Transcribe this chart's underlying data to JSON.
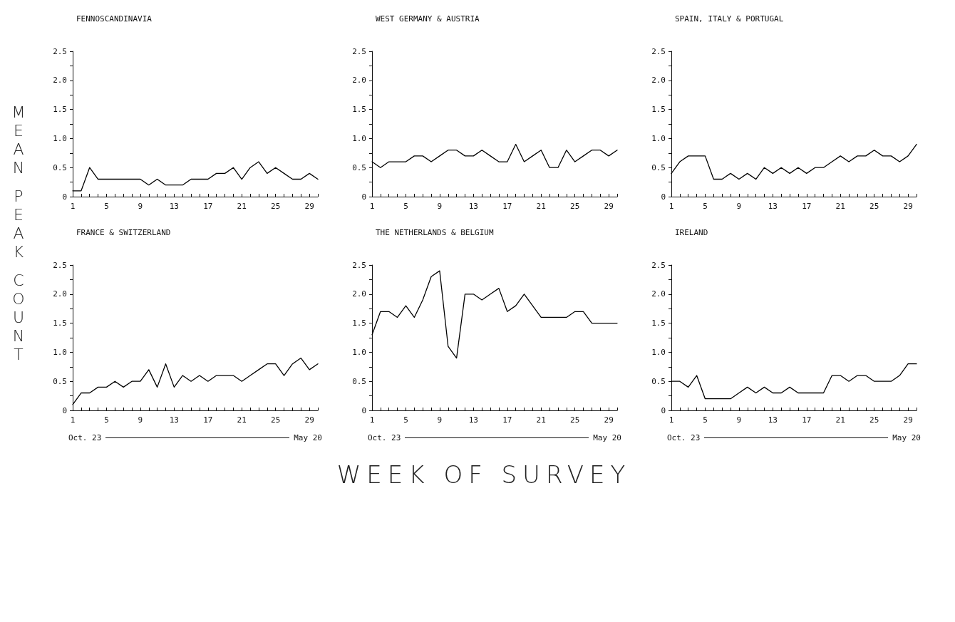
{
  "chart_data": [
    {
      "type": "line",
      "title": "FENNOSCANDINAVIA",
      "ylabel": "MEAN PEAK COUNT",
      "color": "#000000",
      "x": [
        1,
        2,
        3,
        4,
        5,
        6,
        7,
        8,
        9,
        10,
        11,
        12,
        13,
        14,
        15,
        16,
        17,
        18,
        19,
        20,
        21,
        22,
        23,
        24,
        25,
        26,
        27,
        28,
        29,
        30
      ],
      "values": [
        0.1,
        0.1,
        0.5,
        0.3,
        0.3,
        0.3,
        0.3,
        0.3,
        0.3,
        0.2,
        0.3,
        0.2,
        0.2,
        0.2,
        0.3,
        0.3,
        0.3,
        0.4,
        0.4,
        0.5,
        0.3,
        0.5,
        0.6,
        0.4,
        0.5,
        0.4,
        0.3,
        0.3,
        0.4,
        0.3
      ],
      "xlim": [
        1,
        30
      ],
      "xticks": [
        1,
        {
          "value": 2,
          "label": null
        },
        {
          "value": 3,
          "label": null
        },
        {
          "value": 4,
          "label": null
        },
        5,
        {
          "value": 6,
          "label": null
        },
        {
          "value": 7,
          "label": null
        },
        {
          "value": 8,
          "label": null
        },
        9,
        {
          "value": 10,
          "label": null
        },
        {
          "value": 11,
          "label": null
        },
        {
          "value": 12,
          "label": null
        },
        13,
        {
          "value": 14,
          "label": null
        },
        {
          "value": 15,
          "label": null
        },
        {
          "value": 16,
          "label": null
        },
        17,
        {
          "value": 18,
          "label": null
        },
        {
          "value": 19,
          "label": null
        },
        {
          "value": 20,
          "label": null
        },
        21,
        {
          "value": 22,
          "label": null
        },
        {
          "value": 23,
          "label": null
        },
        {
          "value": 24,
          "label": null
        },
        25,
        {
          "value": 26,
          "label": null
        },
        {
          "value": 27,
          "label": null
        },
        {
          "value": 28,
          "label": null
        },
        29,
        {
          "value": 30,
          "label": null
        }
      ],
      "ylim": [
        0,
        2.5
      ],
      "yticks": [
        0,
        {
          "value": 0.25,
          "label": null
        },
        0.5,
        {
          "value": 0.75,
          "label": null
        },
        {
          "value": 1,
          "label": "1.0"
        },
        {
          "value": 1.25,
          "label": null
        },
        1.5,
        {
          "value": 1.75,
          "label": null
        },
        {
          "value": 2,
          "label": "2.0"
        },
        {
          "value": 2.25,
          "label": null
        },
        2.5
      ]
    },
    {
      "type": "line",
      "title": "WEST GERMANY & AUSTRIA",
      "color": "#000000",
      "x": [
        1,
        2,
        3,
        4,
        5,
        6,
        7,
        8,
        9,
        10,
        11,
        12,
        13,
        14,
        15,
        16,
        17,
        18,
        19,
        20,
        21,
        22,
        23,
        24,
        25,
        26,
        27,
        28,
        29,
        30
      ],
      "values": [
        0.6,
        0.5,
        0.6,
        0.6,
        0.6,
        0.7,
        0.7,
        0.6,
        0.7,
        0.8,
        0.8,
        0.7,
        0.7,
        0.8,
        0.7,
        0.6,
        0.6,
        0.9,
        0.6,
        0.7,
        0.8,
        0.5,
        0.5,
        0.8,
        0.6,
        0.7,
        0.8,
        0.8,
        0.7,
        0.8
      ],
      "xlim": [
        1,
        30
      ],
      "xticks": [
        1,
        {
          "value": 2,
          "label": null
        },
        {
          "value": 3,
          "label": null
        },
        {
          "value": 4,
          "label": null
        },
        5,
        {
          "value": 6,
          "label": null
        },
        {
          "value": 7,
          "label": null
        },
        {
          "value": 8,
          "label": null
        },
        9,
        {
          "value": 10,
          "label": null
        },
        {
          "value": 11,
          "label": null
        },
        {
          "value": 12,
          "label": null
        },
        13,
        {
          "value": 14,
          "label": null
        },
        {
          "value": 15,
          "label": null
        },
        {
          "value": 16,
          "label": null
        },
        17,
        {
          "value": 18,
          "label": null
        },
        {
          "value": 19,
          "label": null
        },
        {
          "value": 20,
          "label": null
        },
        21,
        {
          "value": 22,
          "label": null
        },
        {
          "value": 23,
          "label": null
        },
        {
          "value": 24,
          "label": null
        },
        25,
        {
          "value": 26,
          "label": null
        },
        {
          "value": 27,
          "label": null
        },
        {
          "value": 28,
          "label": null
        },
        29,
        {
          "value": 30,
          "label": null
        }
      ],
      "ylim": [
        0,
        2.5
      ],
      "yticks": [
        0,
        {
          "value": 0.25,
          "label": null
        },
        0.5,
        {
          "value": 0.75,
          "label": null
        },
        {
          "value": 1,
          "label": "1.0"
        },
        {
          "value": 1.25,
          "label": null
        },
        1.5,
        {
          "value": 1.75,
          "label": null
        },
        {
          "value": 2,
          "label": "2.0"
        },
        {
          "value": 2.25,
          "label": null
        },
        2.5
      ]
    },
    {
      "type": "line",
      "title": "SPAIN, ITALY & PORTUGAL",
      "color": "#000000",
      "x": [
        1,
        2,
        3,
        4,
        5,
        6,
        7,
        8,
        9,
        10,
        11,
        12,
        13,
        14,
        15,
        16,
        17,
        18,
        19,
        20,
        21,
        22,
        23,
        24,
        25,
        26,
        27,
        28,
        29,
        30
      ],
      "values": [
        0.4,
        0.6,
        0.7,
        0.7,
        0.7,
        0.3,
        0.3,
        0.4,
        0.3,
        0.4,
        0.3,
        0.5,
        0.4,
        0.5,
        0.4,
        0.5,
        0.4,
        0.5,
        0.5,
        0.6,
        0.7,
        0.6,
        0.7,
        0.7,
        0.8,
        0.7,
        0.7,
        0.6,
        0.7,
        0.9
      ],
      "xlim": [
        1,
        30
      ],
      "xticks": [
        1,
        {
          "value": 2,
          "label": null
        },
        {
          "value": 3,
          "label": null
        },
        {
          "value": 4,
          "label": null
        },
        5,
        {
          "value": 6,
          "label": null
        },
        {
          "value": 7,
          "label": null
        },
        {
          "value": 8,
          "label": null
        },
        9,
        {
          "value": 10,
          "label": null
        },
        {
          "value": 11,
          "label": null
        },
        {
          "value": 12,
          "label": null
        },
        13,
        {
          "value": 14,
          "label": null
        },
        {
          "value": 15,
          "label": null
        },
        {
          "value": 16,
          "label": null
        },
        17,
        {
          "value": 18,
          "label": null
        },
        {
          "value": 19,
          "label": null
        },
        {
          "value": 20,
          "label": null
        },
        21,
        {
          "value": 22,
          "label": null
        },
        {
          "value": 23,
          "label": null
        },
        {
          "value": 24,
          "label": null
        },
        25,
        {
          "value": 26,
          "label": null
        },
        {
          "value": 27,
          "label": null
        },
        {
          "value": 28,
          "label": null
        },
        29,
        {
          "value": 30,
          "label": null
        }
      ],
      "ylim": [
        0,
        2.5
      ],
      "yticks": [
        0,
        {
          "value": 0.25,
          "label": null
        },
        0.5,
        {
          "value": 0.75,
          "label": null
        },
        {
          "value": 1,
          "label": "1.0"
        },
        {
          "value": 1.25,
          "label": null
        },
        1.5,
        {
          "value": 1.75,
          "label": null
        },
        {
          "value": 2,
          "label": "2.0"
        },
        {
          "value": 2.25,
          "label": null
        },
        2.5
      ]
    },
    {
      "type": "line",
      "title": "FRANCE & SWITZERLAND",
      "annotations": [
        "Oct. 23",
        "May 20"
      ],
      "color": "#000000",
      "x": [
        1,
        2,
        3,
        4,
        5,
        6,
        7,
        8,
        9,
        10,
        11,
        12,
        13,
        14,
        15,
        16,
        17,
        18,
        19,
        20,
        21,
        22,
        23,
        24,
        25,
        26,
        27,
        28,
        29,
        30
      ],
      "values": [
        0.1,
        0.3,
        0.3,
        0.4,
        0.4,
        0.5,
        0.4,
        0.5,
        0.5,
        0.7,
        0.4,
        0.8,
        0.4,
        0.6,
        0.5,
        0.6,
        0.5,
        0.6,
        0.6,
        0.6,
        0.5,
        0.6,
        0.7,
        0.8,
        0.8,
        0.6,
        0.8,
        0.9,
        0.7,
        0.8
      ],
      "xlim": [
        1,
        30
      ],
      "xticks": [
        1,
        {
          "value": 2,
          "label": null
        },
        {
          "value": 3,
          "label": null
        },
        {
          "value": 4,
          "label": null
        },
        5,
        {
          "value": 6,
          "label": null
        },
        {
          "value": 7,
          "label": null
        },
        {
          "value": 8,
          "label": null
        },
        9,
        {
          "value": 10,
          "label": null
        },
        {
          "value": 11,
          "label": null
        },
        {
          "value": 12,
          "label": null
        },
        13,
        {
          "value": 14,
          "label": null
        },
        {
          "value": 15,
          "label": null
        },
        {
          "value": 16,
          "label": null
        },
        17,
        {
          "value": 18,
          "label": null
        },
        {
          "value": 19,
          "label": null
        },
        {
          "value": 20,
          "label": null
        },
        21,
        {
          "value": 22,
          "label": null
        },
        {
          "value": 23,
          "label": null
        },
        {
          "value": 24,
          "label": null
        },
        25,
        {
          "value": 26,
          "label": null
        },
        {
          "value": 27,
          "label": null
        },
        {
          "value": 28,
          "label": null
        },
        29,
        {
          "value": 30,
          "label": null
        }
      ],
      "ylim": [
        0,
        2.5
      ],
      "yticks": [
        0,
        {
          "value": 0.25,
          "label": null
        },
        0.5,
        {
          "value": 0.75,
          "label": null
        },
        {
          "value": 1,
          "label": "1.0"
        },
        {
          "value": 1.25,
          "label": null
        },
        1.5,
        {
          "value": 1.75,
          "label": null
        },
        {
          "value": 2,
          "label": "2.0"
        },
        {
          "value": 2.25,
          "label": null
        },
        2.5
      ]
    },
    {
      "type": "line",
      "title": "THE NETHERLANDS & BELGIUM",
      "xlabel": "WEEK OF SURVEY",
      "annotations": [
        "Oct. 23",
        "May 20"
      ],
      "color": "#000000",
      "x": [
        1,
        2,
        3,
        4,
        5,
        6,
        7,
        8,
        9,
        10,
        11,
        12,
        13,
        14,
        15,
        16,
        17,
        18,
        19,
        20,
        21,
        22,
        23,
        24,
        25,
        26,
        27,
        28,
        29,
        30
      ],
      "values": [
        1.3,
        1.7,
        1.7,
        1.6,
        1.8,
        1.6,
        1.9,
        2.3,
        2.4,
        1.1,
        0.9,
        2.0,
        2.0,
        1.9,
        2.0,
        2.1,
        1.7,
        1.8,
        2.0,
        1.8,
        1.6,
        1.6,
        1.6,
        1.6,
        1.7,
        1.7,
        1.5,
        1.5,
        1.5,
        1.5
      ],
      "xlim": [
        1,
        30
      ],
      "xticks": [
        1,
        {
          "value": 2,
          "label": null
        },
        {
          "value": 3,
          "label": null
        },
        {
          "value": 4,
          "label": null
        },
        5,
        {
          "value": 6,
          "label": null
        },
        {
          "value": 7,
          "label": null
        },
        {
          "value": 8,
          "label": null
        },
        9,
        {
          "value": 10,
          "label": null
        },
        {
          "value": 11,
          "label": null
        },
        {
          "value": 12,
          "label": null
        },
        13,
        {
          "value": 14,
          "label": null
        },
        {
          "value": 15,
          "label": null
        },
        {
          "value": 16,
          "label": null
        },
        17,
        {
          "value": 18,
          "label": null
        },
        {
          "value": 19,
          "label": null
        },
        {
          "value": 20,
          "label": null
        },
        21,
        {
          "value": 22,
          "label": null
        },
        {
          "value": 23,
          "label": null
        },
        {
          "value": 24,
          "label": null
        },
        25,
        {
          "value": 26,
          "label": null
        },
        {
          "value": 27,
          "label": null
        },
        {
          "value": 28,
          "label": null
        },
        29,
        {
          "value": 30,
          "label": null
        }
      ],
      "ylim": [
        0,
        2.5
      ],
      "yticks": [
        0,
        {
          "value": 0.25,
          "label": null
        },
        0.5,
        {
          "value": 0.75,
          "label": null
        },
        {
          "value": 1,
          "label": "1.0"
        },
        {
          "value": 1.25,
          "label": null
        },
        1.5,
        {
          "value": 1.75,
          "label": null
        },
        {
          "value": 2,
          "label": "2.0"
        },
        {
          "value": 2.25,
          "label": null
        },
        2.5
      ]
    },
    {
      "type": "line",
      "title": "IRELAND",
      "annotations": [
        "Oct. 23",
        "May 20"
      ],
      "color": "#000000",
      "x": [
        1,
        2,
        3,
        4,
        5,
        6,
        7,
        8,
        9,
        10,
        11,
        12,
        13,
        14,
        15,
        16,
        17,
        18,
        19,
        20,
        21,
        22,
        23,
        24,
        25,
        26,
        27,
        28,
        29,
        30
      ],
      "values": [
        0.5,
        0.5,
        0.4,
        0.6,
        0.2,
        0.2,
        0.2,
        0.2,
        0.3,
        0.4,
        0.3,
        0.4,
        0.3,
        0.3,
        0.4,
        0.3,
        0.3,
        0.3,
        0.3,
        0.6,
        0.6,
        0.5,
        0.6,
        0.6,
        0.5,
        0.5,
        0.5,
        0.6,
        0.8,
        0.8
      ],
      "xlim": [
        1,
        30
      ],
      "xticks": [
        1,
        {
          "value": 2,
          "label": null
        },
        {
          "value": 3,
          "label": null
        },
        {
          "value": 4,
          "label": null
        },
        5,
        {
          "value": 6,
          "label": null
        },
        {
          "value": 7,
          "label": null
        },
        {
          "value": 8,
          "label": null
        },
        9,
        {
          "value": 10,
          "label": null
        },
        {
          "value": 11,
          "label": null
        },
        {
          "value": 12,
          "label": null
        },
        13,
        {
          "value": 14,
          "label": null
        },
        {
          "value": 15,
          "label": null
        },
        {
          "value": 16,
          "label": null
        },
        17,
        {
          "value": 18,
          "label": null
        },
        {
          "value": 19,
          "label": null
        },
        {
          "value": 20,
          "label": null
        },
        21,
        {
          "value": 22,
          "label": null
        },
        {
          "value": 23,
          "label": null
        },
        {
          "value": 24,
          "label": null
        },
        25,
        {
          "value": 26,
          "label": null
        },
        {
          "value": 27,
          "label": null
        },
        {
          "value": 28,
          "label": null
        },
        29,
        {
          "value": 30,
          "label": null
        }
      ],
      "ylim": [
        0,
        2.5
      ],
      "yticks": [
        0,
        {
          "value": 0.25,
          "label": null
        },
        0.5,
        {
          "value": 0.75,
          "label": null
        },
        {
          "value": 1,
          "label": "1.0"
        },
        {
          "value": 1.25,
          "label": null
        },
        1.5,
        {
          "value": 1.75,
          "label": null
        },
        {
          "value": 2,
          "label": "2.0"
        },
        {
          "value": 2.25,
          "label": null
        },
        2.5
      ]
    }
  ]
}
